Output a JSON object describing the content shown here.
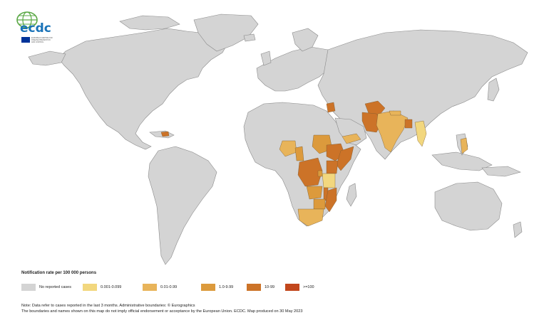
{
  "logo": {
    "text": "ecdc",
    "subtext": "EUROPEAN CENTRE FOR DISEASE PREVENTION AND CONTROL"
  },
  "colors": {
    "ocean": "#ffffff",
    "no_cases": "#d4d4d4",
    "border": "#8a8a8a",
    "classes": [
      "#d4d4d4",
      "#f2d77e",
      "#e8b45a",
      "#dc9a3c",
      "#cc7328",
      "#c2471c"
    ]
  },
  "legend": {
    "title": "Notification rate per 100 000 persons",
    "items": [
      {
        "label": "No reported cases",
        "color": "#d4d4d4"
      },
      {
        "label": "0.001-0.099",
        "color": "#f2d77e"
      },
      {
        "label": "0.01-0.99",
        "color": "#e8b45a"
      },
      {
        "label": "1.0-9.99",
        "color": "#dc9a3c"
      },
      {
        "label": "10-99",
        "color": "#cc7328"
      },
      {
        "label": ">=100",
        "color": "#c2471c"
      }
    ]
  },
  "notes": {
    "line1": "Note: Data refer to cases reported in the last 3 months. Administrative boundaries: © Eurographics",
    "line2": "The boundaries and names shown on this map do not imply official endorsement or acceptance by the European Union. ECDC. Map produced on 30 May 2023"
  },
  "regions": [
    {
      "name": "Haiti",
      "class": 4
    },
    {
      "name": "Syria",
      "class": 4
    },
    {
      "name": "Afghanistan",
      "class": 4
    },
    {
      "name": "Pakistan",
      "class": 4
    },
    {
      "name": "India",
      "class": 2
    },
    {
      "name": "Nepal",
      "class": 2
    },
    {
      "name": "Bangladesh",
      "class": 4
    },
    {
      "name": "Myanmar",
      "class": 1
    },
    {
      "name": "Philippines",
      "class": 2
    },
    {
      "name": "Yemen",
      "class": 2
    },
    {
      "name": "Nigeria",
      "class": 2
    },
    {
      "name": "Cameroon",
      "class": 3
    },
    {
      "name": "Sudan",
      "class": 3
    },
    {
      "name": "Ethiopia",
      "class": 4
    },
    {
      "name": "Somalia",
      "class": 4
    },
    {
      "name": "Kenya",
      "class": 4
    },
    {
      "name": "DR Congo",
      "class": 4
    },
    {
      "name": "Tanzania",
      "class": 1
    },
    {
      "name": "Burundi",
      "class": 3
    },
    {
      "name": "Zambia",
      "class": 3
    },
    {
      "name": "Malawi",
      "class": 4
    },
    {
      "name": "Mozambique",
      "class": 4
    },
    {
      "name": "Zimbabwe",
      "class": 3
    },
    {
      "name": "South Africa",
      "class": 2
    }
  ]
}
